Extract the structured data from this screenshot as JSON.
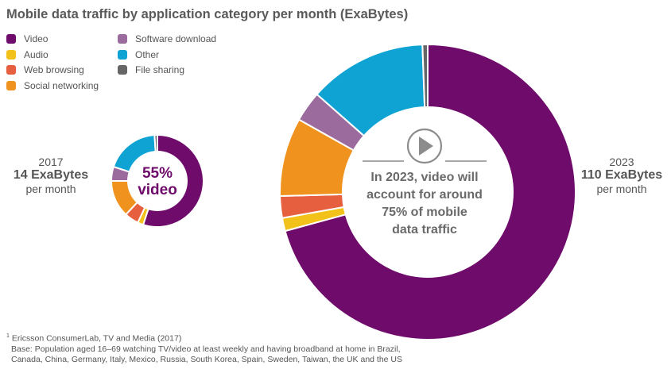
{
  "title": "Mobile data traffic by application category per month (ExaBytes)",
  "legend": [
    {
      "name": "Video",
      "color": "#6e0b6b"
    },
    {
      "name": "Audio",
      "color": "#f2c21a"
    },
    {
      "name": "Web browsing",
      "color": "#e6603f"
    },
    {
      "name": "Social networking",
      "color": "#f0931e"
    },
    {
      "name": "Software download",
      "color": "#9c6b9e"
    },
    {
      "name": "Other",
      "color": "#0fa3d4"
    },
    {
      "name": "File sharing",
      "color": "#666666"
    }
  ],
  "chart_data": [
    {
      "type": "pie",
      "year": "2017",
      "total": "14 ExaBytes",
      "per_month": "per month",
      "center_pct": "55%",
      "center_word": "video",
      "categories": [
        "Video",
        "Audio",
        "Web browsing",
        "Social networking",
        "Software download",
        "Other",
        "File sharing"
      ],
      "values": [
        55,
        2,
        5,
        13,
        5,
        19,
        1
      ]
    },
    {
      "type": "pie",
      "year": "2023",
      "total": "110 ExaBytes",
      "per_month": "per month",
      "center_text": [
        "In 2023, video will",
        "account for around",
        "75% of mobile",
        "data traffic"
      ],
      "categories": [
        "Video",
        "Audio",
        "Web browsing",
        "Social networking",
        "Software download",
        "Other",
        "File sharing"
      ],
      "values": [
        74,
        1.5,
        2.5,
        9,
        3.5,
        13.5,
        0.6
      ]
    }
  ],
  "footnote": {
    "marker": "1",
    "lines": [
      "Ericsson ConsumerLab, TV and Media (2017)",
      "Base: Population aged 16–69 watching TV/video at least weekly and having broadband at home in Brazil,",
      "Canada, China, Germany, Italy, Mexico, Russia, South Korea, Spain, Sweden, Taiwan, the UK and the US"
    ]
  }
}
